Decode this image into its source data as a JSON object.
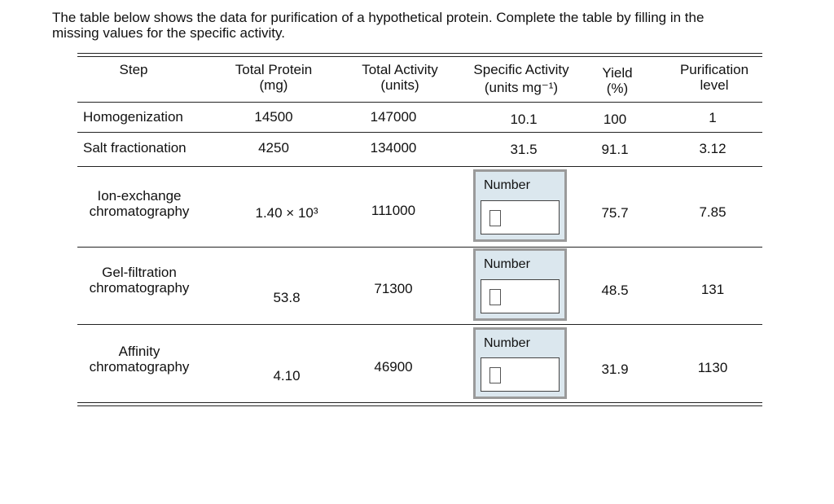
{
  "intro": [
    "The table below shows the data for purification of a hypothetical protein. Complete the table by filling in the",
    "missing values for the specific activity."
  ],
  "table": {
    "headers": [
      [
        "Step"
      ],
      [
        "Total Protein",
        "(mg)"
      ],
      [
        "Total Activity",
        "(units)"
      ],
      [
        "Specific Activity",
        "(units mg⁻¹)"
      ],
      [
        "Yield",
        "(%)"
      ],
      [
        "Purification",
        "level"
      ]
    ],
    "rows": [
      {
        "step": [
          "Homogenization"
        ],
        "total_protein": "14500",
        "total_activity": "147000",
        "specific_activity": "10.1",
        "yield": "100",
        "purification": "1"
      },
      {
        "step": [
          "Salt fractionation"
        ],
        "total_protein": "4250",
        "total_activity": "134000",
        "specific_activity": "31.5",
        "yield": "91.1",
        "purification": "3.12"
      },
      {
        "step": [
          "Ion-exchange",
          "chromatography"
        ],
        "total_protein": "1.40 × 10³",
        "total_activity": "111000",
        "input_label": "Number",
        "yield": "75.7",
        "purification": "7.85"
      },
      {
        "step": [
          "Gel-filtration",
          "chromatography"
        ],
        "total_protein": "53.8",
        "total_activity": "71300",
        "input_label": "Number",
        "yield": "48.5",
        "purification": "131"
      },
      {
        "step": [
          "Affinity",
          "chromatography"
        ],
        "total_protein": "4.10",
        "total_activity": "46900",
        "input_label": "Number",
        "yield": "31.9",
        "purification": "1130"
      }
    ]
  }
}
